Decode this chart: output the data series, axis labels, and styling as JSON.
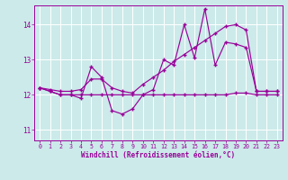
{
  "xlabel": "Windchill (Refroidissement éolien,°C)",
  "xlim": [
    -0.5,
    23.5
  ],
  "ylim": [
    10.7,
    14.55
  ],
  "yticks": [
    11,
    12,
    13,
    14
  ],
  "xticks": [
    0,
    1,
    2,
    3,
    4,
    5,
    6,
    7,
    8,
    9,
    10,
    11,
    12,
    13,
    14,
    15,
    16,
    17,
    18,
    19,
    20,
    21,
    22,
    23
  ],
  "bg_color": "#cceaea",
  "grid_color": "#ffffff",
  "line_color": "#990099",
  "series1": [
    12.2,
    12.1,
    12.0,
    12.0,
    11.9,
    12.8,
    12.5,
    11.55,
    11.45,
    11.6,
    12.0,
    12.15,
    13.0,
    12.85,
    14.0,
    13.05,
    14.45,
    12.85,
    13.5,
    13.45,
    13.35,
    12.1,
    12.1,
    12.1
  ],
  "series2": [
    12.2,
    12.1,
    12.0,
    12.0,
    12.0,
    12.0,
    12.0,
    12.0,
    12.0,
    12.0,
    12.0,
    12.0,
    12.0,
    12.0,
    12.0,
    12.0,
    12.0,
    12.0,
    12.0,
    12.05,
    12.05,
    12.0,
    12.0,
    12.0
  ],
  "series3": [
    12.2,
    12.15,
    12.1,
    12.1,
    12.15,
    12.45,
    12.45,
    12.2,
    12.1,
    12.05,
    12.3,
    12.5,
    12.7,
    12.95,
    13.15,
    13.35,
    13.55,
    13.75,
    13.95,
    14.0,
    13.85,
    12.1,
    12.1,
    12.1
  ]
}
